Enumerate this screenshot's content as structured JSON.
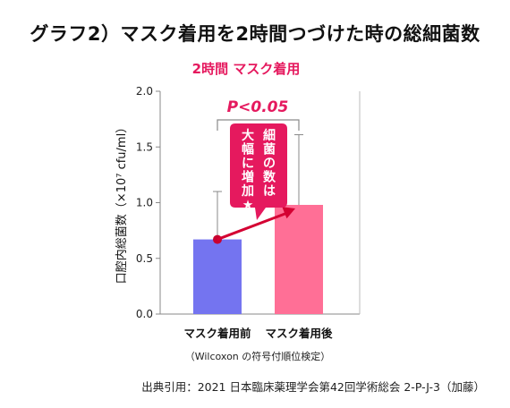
{
  "title": "グラフ2）マスク着用を2時間つづけた時の総細菌数",
  "source": "出典引用：2021 日本臨床薬理学会第42回学術総会 2-P-J-3（加藤）",
  "chart_data": {
    "type": "bar",
    "title": "2時間 マスク着用",
    "categories": [
      "マスク着用前",
      "マスク着用後"
    ],
    "values": [
      0.67,
      0.98
    ],
    "error_upper": [
      1.1,
      1.61
    ],
    "ylabel": "口腔内総菌数（×10⁷ cfu/ml）",
    "ylim": [
      0,
      2.0
    ],
    "yticks": [
      "0.0",
      "0.5",
      "1.0",
      "1.5",
      "2.0"
    ],
    "bar_colors": [
      "#7474f0",
      "#ff6f96"
    ],
    "accent_color": "#e5195e",
    "significance": "P<0.05",
    "callout": "細菌の数は大幅に増加★",
    "callout_lines": [
      "細菌の数は",
      "大幅に増加★"
    ],
    "note": "（Wilcoxon の符号付順位検定）",
    "grid": false
  }
}
